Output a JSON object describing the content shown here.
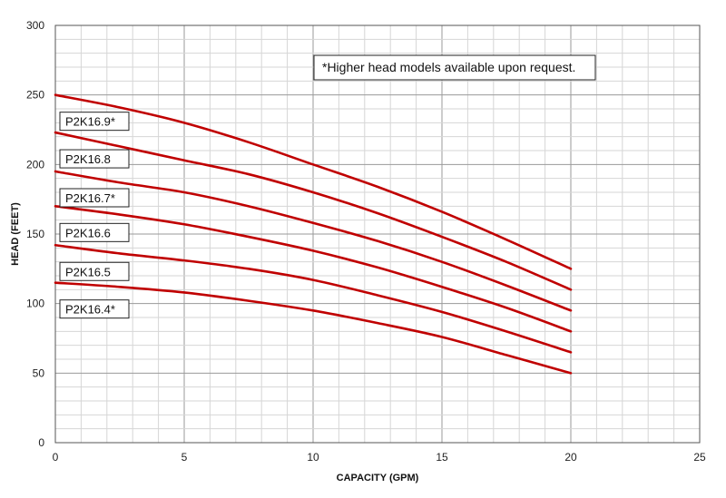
{
  "chart_data": {
    "type": "line",
    "xlabel": "CAPACITY (GPM)",
    "ylabel": "HEAD (FEET)",
    "xlim": [
      0,
      25
    ],
    "ylim": [
      0,
      300
    ],
    "x_ticks": [
      0,
      5,
      10,
      15,
      20,
      25
    ],
    "y_ticks": [
      0,
      50,
      100,
      150,
      200,
      250,
      300
    ],
    "grid": true,
    "line_color": "#c00000",
    "note": "*Higher head models available upon request.",
    "series": [
      {
        "name": "P2K16.9*",
        "x": [
          0,
          2.5,
          5,
          7.5,
          10,
          12.5,
          15,
          17.5,
          20
        ],
        "y": [
          250,
          241,
          230,
          216,
          200,
          184,
          166,
          146,
          125
        ]
      },
      {
        "name": "P2K16.8",
        "x": [
          0,
          2.5,
          5,
          7.5,
          10,
          12.5,
          15,
          17.5,
          20
        ],
        "y": [
          223,
          213,
          203,
          193,
          180,
          165,
          148,
          130,
          110
        ]
      },
      {
        "name": "P2K16.7*",
        "x": [
          0,
          2.5,
          5,
          7.5,
          10,
          12.5,
          15,
          17.5,
          20
        ],
        "y": [
          195,
          187,
          180,
          170,
          158,
          145,
          130,
          113,
          95
        ]
      },
      {
        "name": "P2K16.6",
        "x": [
          0,
          2.5,
          5,
          7.5,
          10,
          12.5,
          15,
          17.5,
          20
        ],
        "y": [
          170,
          164,
          157,
          148,
          138,
          126,
          112,
          97,
          80
        ]
      },
      {
        "name": "P2K16.5",
        "x": [
          0,
          2.5,
          5,
          7.5,
          10,
          12.5,
          15,
          17.5,
          20
        ],
        "y": [
          142,
          136,
          131,
          125,
          117,
          106,
          94,
          80,
          65
        ]
      },
      {
        "name": "P2K16.4*",
        "x": [
          0,
          2.5,
          5,
          7.5,
          10,
          12.5,
          15,
          17.5,
          20
        ],
        "y": [
          115,
          112,
          108,
          102,
          95,
          86,
          76,
          63,
          50
        ]
      }
    ]
  }
}
